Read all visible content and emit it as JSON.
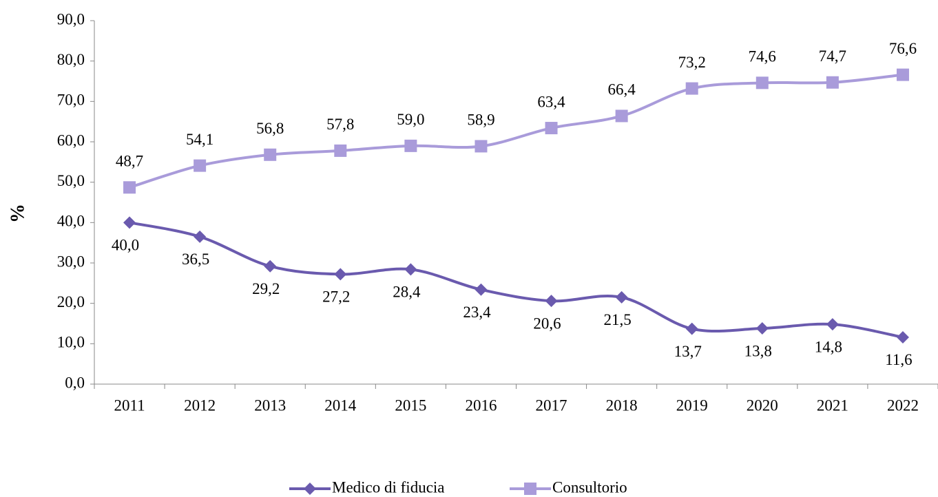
{
  "chart_data": {
    "type": "line",
    "y_label": "%",
    "categories": [
      "2011",
      "2012",
      "2013",
      "2014",
      "2015",
      "2016",
      "2017",
      "2018",
      "2019",
      "2020",
      "2021",
      "2022"
    ],
    "series": [
      {
        "name": "Medico di fiducia",
        "color": "#6a5aae",
        "marker": "diamond",
        "values": [
          40.0,
          36.5,
          29.2,
          27.2,
          28.4,
          23.4,
          20.6,
          21.5,
          13.7,
          13.8,
          14.8,
          11.6
        ],
        "value_labels": [
          "40,0",
          "36,5",
          "29,2",
          "27,2",
          "28,4",
          "23,4",
          "20,6",
          "21,5",
          "13,7",
          "13,8",
          "14,8",
          "11,6"
        ]
      },
      {
        "name": "Consultorio",
        "color": "#a99bda",
        "marker": "square",
        "values": [
          48.7,
          54.1,
          56.8,
          57.8,
          59.0,
          58.9,
          63.4,
          66.4,
          73.2,
          74.6,
          74.7,
          76.6
        ],
        "value_labels": [
          "48,7",
          "54,1",
          "56,8",
          "57,8",
          "59,0",
          "58,9",
          "63,4",
          "66,4",
          "73,2",
          "74,6",
          "74,7",
          "76,6"
        ]
      }
    ],
    "ylim": [
      0,
      90
    ],
    "yticks": [
      {
        "value": 0,
        "label": "0,0"
      },
      {
        "value": 10,
        "label": "10,0"
      },
      {
        "value": 20,
        "label": "20,0"
      },
      {
        "value": 30,
        "label": "30,0"
      },
      {
        "value": 40,
        "label": "40,0"
      },
      {
        "value": 50,
        "label": "50,0"
      },
      {
        "value": 60,
        "label": "60,0"
      },
      {
        "value": 70,
        "label": "70,0"
      },
      {
        "value": 80,
        "label": "80,0"
      },
      {
        "value": 90,
        "label": "90,0"
      }
    ],
    "grid": false,
    "legend": "bottom"
  }
}
